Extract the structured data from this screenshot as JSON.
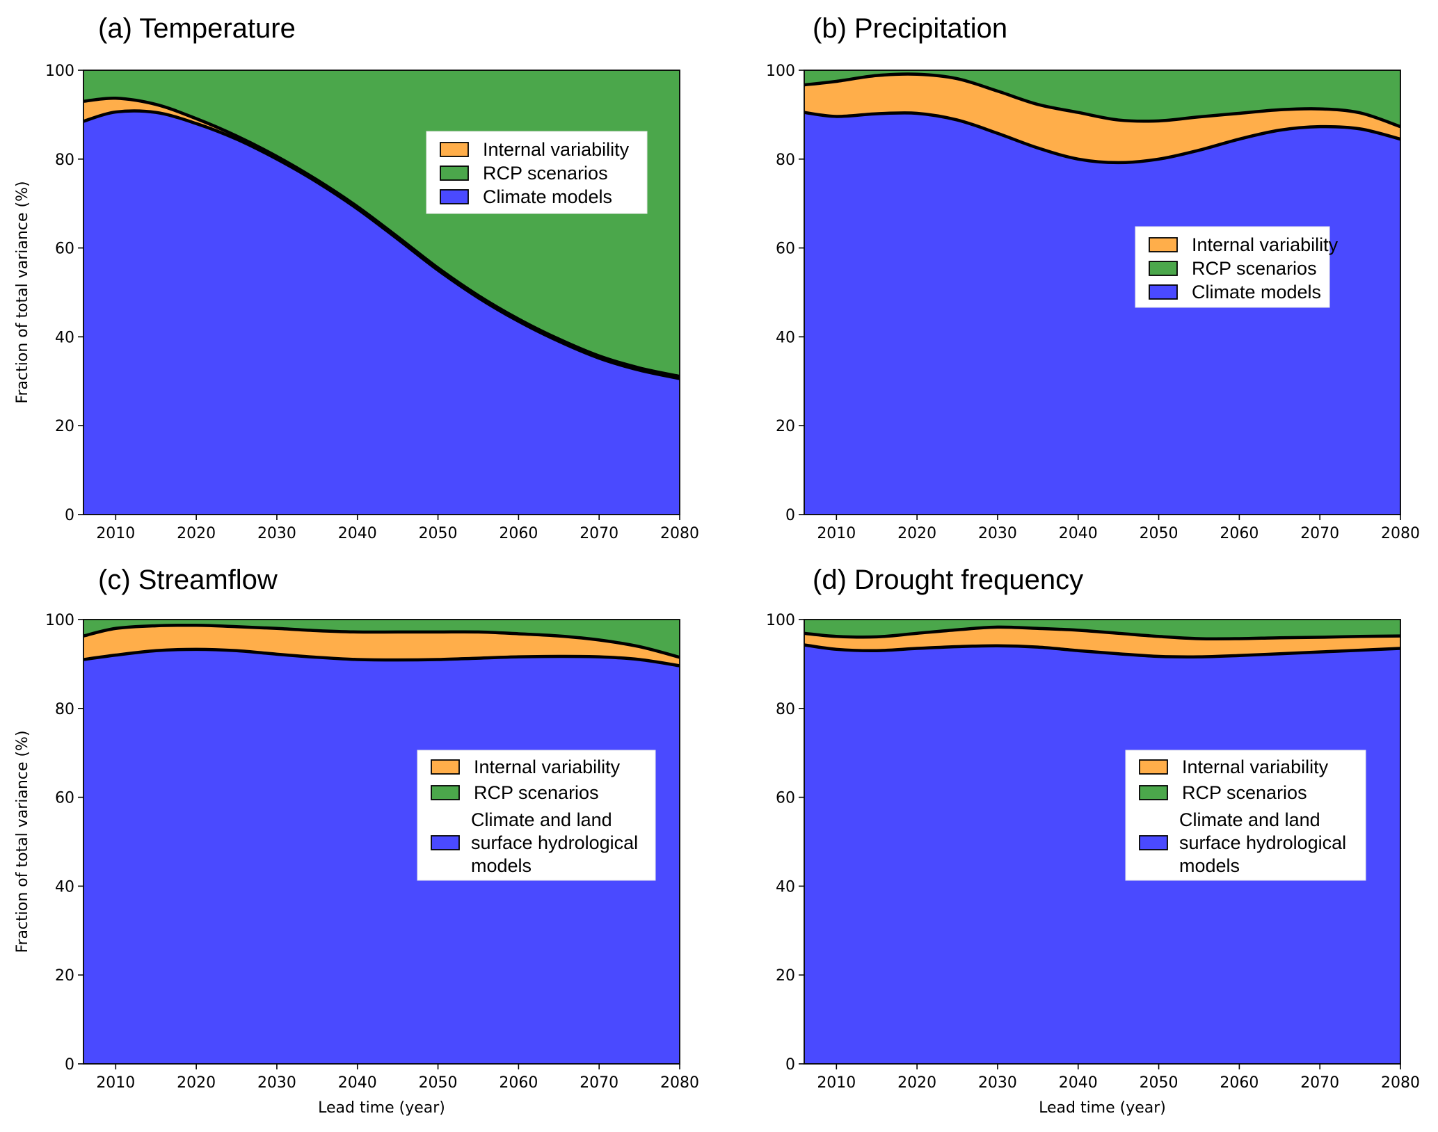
{
  "figure": {
    "panels": [
      {
        "id": "a",
        "title": "(a) Temperature",
        "show_ylabel": true,
        "show_xlabel": false
      },
      {
        "id": "b",
        "title": "(b) Precipitation",
        "show_ylabel": false,
        "show_xlabel": false
      },
      {
        "id": "c",
        "title": "(c) Streamflow",
        "show_ylabel": true,
        "show_xlabel": true
      },
      {
        "id": "d",
        "title": "(d) Drought frequency",
        "show_ylabel": false,
        "show_xlabel": true
      }
    ]
  },
  "colors": {
    "internal_variability": "#FFAE4A",
    "rcp_scenarios": "#4BA74B",
    "climate_models": "#4A4AFF",
    "boundary_line": "#000000"
  },
  "chart_data": [
    {
      "type": "area",
      "stacked": true,
      "title": "(a) Temperature",
      "xlabel": "",
      "ylabel": "Fraction of total variance (%)",
      "xlim": [
        2006,
        2080
      ],
      "ylim": [
        0,
        100
      ],
      "xticks": [
        2010,
        2020,
        2030,
        2040,
        2050,
        2060,
        2070,
        2080
      ],
      "yticks": [
        0,
        20,
        40,
        60,
        80,
        100
      ],
      "grid": false,
      "legend": {
        "position": "upper-right-inset",
        "entries": [
          "Internal variability",
          "RCP scenarios",
          "Climate models"
        ]
      },
      "x": [
        2006,
        2010,
        2015,
        2020,
        2025,
        2030,
        2035,
        2040,
        2045,
        2050,
        2055,
        2060,
        2065,
        2070,
        2075,
        2080
      ],
      "series": [
        {
          "name": "Climate models",
          "values": [
            88.5,
            90.6,
            90.5,
            88.0,
            84.5,
            80.0,
            74.8,
            68.8,
            62.0,
            55.0,
            48.8,
            43.5,
            39.0,
            35.2,
            32.5,
            30.6
          ]
        },
        {
          "name": "Internal variability",
          "values": [
            4.5,
            3.1,
            1.8,
            1.1,
            0.7,
            0.6,
            0.5,
            0.5,
            0.5,
            0.5,
            0.5,
            0.5,
            0.5,
            0.5,
            0.5,
            0.5
          ]
        },
        {
          "name": "RCP scenarios",
          "values": [
            7.0,
            6.3,
            7.7,
            10.9,
            14.8,
            19.4,
            24.7,
            30.7,
            37.5,
            44.5,
            50.7,
            56.0,
            60.5,
            64.3,
            67.0,
            68.9
          ]
        }
      ]
    },
    {
      "type": "area",
      "stacked": true,
      "title": "(b) Precipitation",
      "xlabel": "",
      "ylabel": "",
      "xlim": [
        2006,
        2080
      ],
      "ylim": [
        0,
        100
      ],
      "xticks": [
        2010,
        2020,
        2030,
        2040,
        2050,
        2060,
        2070,
        2080
      ],
      "yticks": [
        0,
        20,
        40,
        60,
        80,
        100
      ],
      "grid": false,
      "legend": {
        "position": "center-right-inset",
        "entries": [
          "Internal variability",
          "RCP scenarios",
          "Climate models"
        ]
      },
      "x": [
        2006,
        2010,
        2015,
        2020,
        2025,
        2030,
        2035,
        2040,
        2045,
        2050,
        2055,
        2060,
        2065,
        2070,
        2075,
        2080
      ],
      "series": [
        {
          "name": "Climate models",
          "values": [
            90.5,
            89.6,
            90.2,
            90.3,
            88.8,
            85.8,
            82.5,
            80.0,
            79.2,
            80.0,
            82.0,
            84.5,
            86.5,
            87.3,
            86.8,
            84.5
          ]
        },
        {
          "name": "Internal variability",
          "values": [
            6.2,
            7.9,
            8.6,
            8.8,
            9.3,
            9.5,
            9.8,
            10.5,
            9.6,
            8.6,
            7.5,
            5.8,
            4.6,
            4.0,
            3.6,
            2.8
          ]
        },
        {
          "name": "RCP scenarios",
          "values": [
            3.3,
            2.5,
            1.2,
            0.9,
            1.9,
            4.7,
            7.7,
            9.5,
            11.2,
            11.4,
            10.5,
            9.7,
            8.9,
            8.7,
            9.6,
            12.7
          ]
        }
      ]
    },
    {
      "type": "area",
      "stacked": true,
      "title": "(c) Streamflow",
      "xlabel": "Lead time (year)",
      "ylabel": "Fraction of total variance (%)",
      "xlim": [
        2006,
        2080
      ],
      "ylim": [
        0,
        100
      ],
      "xticks": [
        2010,
        2020,
        2030,
        2040,
        2050,
        2060,
        2070,
        2080
      ],
      "yticks": [
        0,
        20,
        40,
        60,
        80,
        100
      ],
      "grid": false,
      "legend": {
        "position": "center-right-inset",
        "entries": [
          "Internal variability",
          "RCP scenarios",
          "Climate and land surface hydrological models"
        ]
      },
      "x": [
        2006,
        2010,
        2015,
        2020,
        2025,
        2030,
        2035,
        2040,
        2045,
        2050,
        2055,
        2060,
        2065,
        2070,
        2075,
        2080
      ],
      "series": [
        {
          "name": "Climate and land surface hydrological models",
          "values": [
            91.0,
            92.0,
            93.0,
            93.3,
            93.0,
            92.2,
            91.5,
            91.0,
            90.9,
            91.0,
            91.3,
            91.6,
            91.7,
            91.6,
            91.0,
            89.6
          ]
        },
        {
          "name": "Internal variability",
          "values": [
            5.3,
            6.0,
            5.6,
            5.4,
            5.4,
            5.8,
            6.0,
            6.2,
            6.3,
            6.2,
            5.9,
            5.2,
            4.6,
            3.8,
            2.9,
            1.9
          ]
        },
        {
          "name": "RCP scenarios",
          "values": [
            3.7,
            2.0,
            1.4,
            1.3,
            1.6,
            2.0,
            2.5,
            2.8,
            2.8,
            2.8,
            2.8,
            3.2,
            3.7,
            4.6,
            6.1,
            8.5
          ]
        }
      ]
    },
    {
      "type": "area",
      "stacked": true,
      "title": "(d) Drought frequency",
      "xlabel": "Lead time (year)",
      "ylabel": "",
      "xlim": [
        2006,
        2080
      ],
      "ylim": [
        0,
        100
      ],
      "xticks": [
        2010,
        2020,
        2030,
        2040,
        2050,
        2060,
        2070,
        2080
      ],
      "yticks": [
        0,
        20,
        40,
        60,
        80,
        100
      ],
      "grid": false,
      "legend": {
        "position": "center-right-inset",
        "entries": [
          "Internal variability",
          "RCP scenarios",
          "Climate and land surface hydrological models"
        ]
      },
      "x": [
        2006,
        2010,
        2015,
        2020,
        2025,
        2030,
        2035,
        2040,
        2045,
        2050,
        2055,
        2060,
        2065,
        2070,
        2075,
        2080
      ],
      "series": [
        {
          "name": "Climate and land surface hydrological models",
          "values": [
            94.3,
            93.3,
            93.0,
            93.5,
            93.9,
            94.1,
            93.8,
            93.0,
            92.3,
            91.7,
            91.6,
            91.9,
            92.3,
            92.7,
            93.1,
            93.5
          ]
        },
        {
          "name": "Internal variability",
          "values": [
            2.6,
            2.9,
            3.1,
            3.4,
            3.8,
            4.2,
            4.2,
            4.6,
            4.6,
            4.5,
            4.1,
            3.8,
            3.6,
            3.3,
            3.1,
            2.8
          ]
        },
        {
          "name": "RCP scenarios",
          "values": [
            3.1,
            3.8,
            3.9,
            3.1,
            2.3,
            1.7,
            2.0,
            2.4,
            3.1,
            3.8,
            4.3,
            4.3,
            4.1,
            4.0,
            3.8,
            3.7
          ]
        }
      ]
    }
  ]
}
